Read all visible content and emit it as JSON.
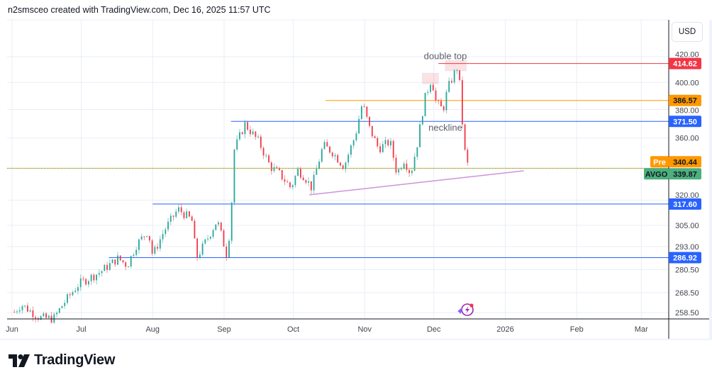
{
  "header": {
    "caption": "n2smsceo created with TradingView.com, Dec 16, 2025 11:57 UTC"
  },
  "currency_button": "USD",
  "logo": {
    "text": "TradingView"
  },
  "colors": {
    "up": "#26a69a",
    "down": "#f23645",
    "red_level": "#f23645",
    "orange_level": "#ff9800",
    "blue_level": "#2962ff",
    "trendline": "#ce93d8",
    "pre": "#ff9800",
    "last": "#4caf7d"
  },
  "chart_data": {
    "type": "candlestick",
    "symbol": "AVGO",
    "scale": "log",
    "ylim": [
      254.8,
      440
    ],
    "xlim": [
      "2025-05-29",
      "2026-03-14"
    ],
    "x_ticks": [
      {
        "date": "2025-06-01",
        "label": "Jun"
      },
      {
        "date": "2025-07-01",
        "label": "Jul"
      },
      {
        "date": "2025-08-01",
        "label": "Aug"
      },
      {
        "date": "2025-09-01",
        "label": "Sep"
      },
      {
        "date": "2025-10-01",
        "label": "Oct"
      },
      {
        "date": "2025-11-01",
        "label": "Nov"
      },
      {
        "date": "2025-12-01",
        "label": "Dec"
      },
      {
        "date": "2026-01-01",
        "label": "2026"
      },
      {
        "date": "2026-02-01",
        "label": "Feb"
      },
      {
        "date": "2026-03-01",
        "label": "Mar"
      }
    ],
    "y_ticks": [
      {
        "value": 420,
        "label": "420.00"
      },
      {
        "value": 400,
        "label": "400.00"
      },
      {
        "value": 380,
        "label": "380.00"
      },
      {
        "value": 360,
        "label": "360.00"
      },
      {
        "value": 320,
        "label": "320.00"
      },
      {
        "value": 305,
        "label": "305.00"
      },
      {
        "value": 293,
        "label": "293.00"
      },
      {
        "value": 280.5,
        "label": "280.50"
      },
      {
        "value": 268.5,
        "label": "268.50"
      },
      {
        "value": 258.5,
        "label": "258.50"
      }
    ],
    "close_path": [
      [
        "2025-06-02",
        258.9
      ],
      [
        "2025-06-05",
        262.5
      ],
      [
        "2025-06-13",
        256
      ],
      [
        "2025-06-19",
        255.5
      ],
      [
        "2025-06-23",
        262.5
      ],
      [
        "2025-06-30",
        273
      ],
      [
        "2025-07-09",
        279
      ],
      [
        "2025-07-17",
        286.5
      ],
      [
        "2025-07-21",
        282.7
      ],
      [
        "2025-07-25",
        294
      ],
      [
        "2025-07-30",
        302
      ],
      [
        "2025-08-01",
        288
      ],
      [
        "2025-08-06",
        302
      ],
      [
        "2025-08-12",
        314.6
      ],
      [
        "2025-08-18",
        308
      ],
      [
        "2025-08-20",
        286.5
      ],
      [
        "2025-08-25",
        298
      ],
      [
        "2025-08-29",
        308
      ],
      [
        "2025-09-02",
        289
      ],
      [
        "2025-09-04",
        306
      ],
      [
        "2025-09-05",
        350.5
      ],
      [
        "2025-09-10",
        369.6
      ],
      [
        "2025-09-16",
        357.5
      ],
      [
        "2025-09-21",
        341
      ],
      [
        "2025-09-25",
        336.4
      ],
      [
        "2025-09-30",
        327.5
      ],
      [
        "2025-10-03",
        338.7
      ],
      [
        "2025-10-06",
        334.4
      ],
      [
        "2025-10-09",
        327.5
      ],
      [
        "2025-10-14",
        355
      ],
      [
        "2025-10-18",
        350.5
      ],
      [
        "2025-10-23",
        341
      ],
      [
        "2025-10-28",
        362
      ],
      [
        "2025-10-31",
        384.9
      ],
      [
        "2025-11-03",
        367
      ],
      [
        "2025-11-07",
        352.8
      ],
      [
        "2025-11-12",
        357.5
      ],
      [
        "2025-11-15",
        336.4
      ],
      [
        "2025-11-18",
        345.6
      ],
      [
        "2025-11-21",
        336.4
      ],
      [
        "2025-11-24",
        357.5
      ],
      [
        "2025-11-27",
        387.4
      ],
      [
        "2025-11-30",
        403.3
      ],
      [
        "2025-12-02",
        384.9
      ],
      [
        "2025-12-05",
        379.6
      ],
      [
        "2025-12-07",
        395.4
      ],
      [
        "2025-12-09",
        403.3
      ],
      [
        "2025-12-11",
        411.6
      ],
      [
        "2025-12-12",
        403.3
      ],
      [
        "2025-12-13",
        379.6
      ],
      [
        "2025-12-14",
        354
      ],
      [
        "2025-12-16",
        339.9
      ]
    ],
    "levels": [
      {
        "price": 414.62,
        "label": "414.62",
        "color": "#f23645",
        "from": "2025-12-03"
      },
      {
        "price": 386.57,
        "label": "386.57",
        "color": "#ff9800",
        "from": "2025-10-15"
      },
      {
        "price": 371.5,
        "label": "371.50",
        "color": "#2962ff",
        "from": "2025-09-04"
      },
      {
        "price": 317.6,
        "label": "317.60",
        "color": "#2962ff",
        "from": "2025-08-01"
      },
      {
        "price": 286.92,
        "label": "286.92",
        "color": "#2962ff",
        "from": "2025-07-13"
      }
    ],
    "trendline": {
      "from": [
        "2025-10-08",
        323.2
      ],
      "to": [
        "2026-01-09",
        338.3
      ]
    },
    "pre_market": {
      "tag": "Pre",
      "price": 340.44,
      "label": "340.44"
    },
    "last_price": {
      "tag": "AVGO",
      "price": 339.87,
      "label": "339.87"
    },
    "annotations": [
      {
        "text": "double top",
        "date": "2025-12-06",
        "price": 418
      },
      {
        "text": "neckline",
        "date": "2025-12-06",
        "price": 365
      }
    ],
    "highlight_boxes": [
      {
        "from": "2025-11-26",
        "to": "2025-12-03",
        "top": 407,
        "bottom": 399
      },
      {
        "from": "2025-12-06",
        "to": "2025-12-15",
        "top": 417,
        "bottom": 409
      }
    ]
  }
}
